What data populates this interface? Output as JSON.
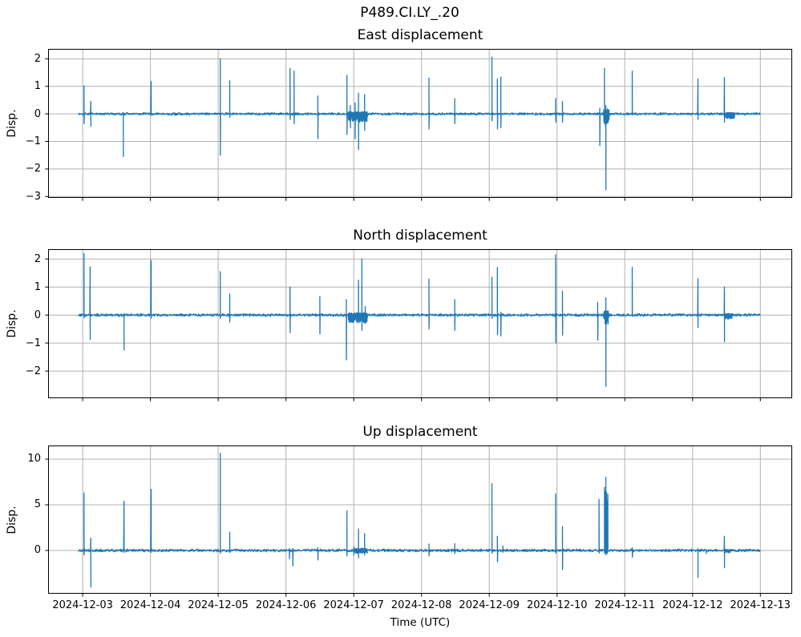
{
  "figure": {
    "suptitle": "P489.CI.LY_.20",
    "line_color": "#1f77b4",
    "grid_color": "#b0b0b0",
    "spine_color": "#000000",
    "background_color": "#ffffff"
  },
  "x_axis": {
    "label": "Time (UTC)",
    "xlim_days": [
      -0.51,
      10.47
    ],
    "tick_days": [
      0,
      1,
      2,
      3,
      4,
      5,
      6,
      7,
      8,
      9,
      10
    ],
    "tick_labels": [
      "2024-12-03",
      "2024-12-04",
      "2024-12-05",
      "2024-12-06",
      "2024-12-07",
      "2024-12-08",
      "2024-12-09",
      "2024-12-10",
      "2024-12-11",
      "2024-12-12",
      "2024-12-13"
    ]
  },
  "chart_data": [
    {
      "type": "line",
      "title": "East displacement",
      "ylabel": "Disp.",
      "ylim": [
        -3.05,
        2.36
      ],
      "yticks": [
        {
          "value": 2,
          "label": "2"
        },
        {
          "value": 1,
          "label": "1"
        },
        {
          "value": 0,
          "label": "0"
        },
        {
          "value": -1,
          "label": "−1"
        },
        {
          "value": -2,
          "label": "−2"
        },
        {
          "value": -3,
          "label": "−3"
        }
      ],
      "grid": true,
      "data_start_day": -0.06,
      "data_end_day": 10.0,
      "baseline": 0,
      "noise_amp": 0.032,
      "spikes_day_up_down": [
        [
          0.02,
          1.02,
          -0.35
        ],
        [
          0.12,
          0.45,
          -0.45
        ],
        [
          0.6,
          0.05,
          -1.55
        ],
        [
          1.01,
          1.18,
          -0.05
        ],
        [
          2.03,
          2.0,
          -1.5
        ],
        [
          2.17,
          1.2,
          -0.12
        ],
        [
          3.06,
          1.65,
          -0.2
        ],
        [
          3.12,
          1.55,
          -0.35
        ],
        [
          3.47,
          0.65,
          -0.9
        ],
        [
          3.9,
          1.4,
          -0.75
        ],
        [
          3.95,
          0.3,
          -0.5
        ],
        [
          4.02,
          0.4,
          -0.9
        ],
        [
          4.07,
          0.75,
          -1.3
        ],
        [
          4.16,
          0.7,
          -0.6
        ],
        [
          5.11,
          1.3,
          -0.55
        ],
        [
          5.49,
          0.55,
          -0.35
        ],
        [
          6.04,
          2.06,
          -0.25
        ],
        [
          6.12,
          1.26,
          -0.55
        ],
        [
          6.17,
          1.34,
          -0.5
        ],
        [
          6.98,
          0.55,
          -0.3
        ],
        [
          7.08,
          0.45,
          -0.3
        ],
        [
          7.63,
          0.2,
          -1.15
        ],
        [
          7.7,
          1.65,
          -0.2
        ],
        [
          7.72,
          0.3,
          -2.75
        ],
        [
          8.11,
          1.55,
          -0.05
        ],
        [
          9.08,
          1.27,
          -0.2
        ],
        [
          9.47,
          1.32,
          -0.3
        ]
      ],
      "blobs_d0_d1_min_max": [
        [
          3.92,
          4.2,
          -0.3,
          0.08
        ],
        [
          7.69,
          7.77,
          -0.45,
          0.2
        ],
        [
          9.48,
          9.62,
          -0.18,
          0.05
        ]
      ]
    },
    {
      "type": "line",
      "title": "North displacement",
      "ylabel": "Disp.",
      "ylim": [
        -2.97,
        2.35
      ],
      "yticks": [
        {
          "value": 2,
          "label": "2"
        },
        {
          "value": 1,
          "label": "1"
        },
        {
          "value": 0,
          "label": "0"
        },
        {
          "value": -1,
          "label": "−1"
        },
        {
          "value": -2,
          "label": "−2"
        }
      ],
      "grid": true,
      "data_start_day": -0.06,
      "data_end_day": 10.0,
      "baseline": 0,
      "noise_amp": 0.035,
      "spikes_day_up_down": [
        [
          0.02,
          2.2,
          -0.1
        ],
        [
          0.11,
          1.72,
          -0.87
        ],
        [
          0.61,
          0.05,
          -1.25
        ],
        [
          1.01,
          1.95,
          -0.1
        ],
        [
          2.03,
          1.55,
          -0.12
        ],
        [
          2.17,
          0.75,
          -0.25
        ],
        [
          3.06,
          1.0,
          -0.63
        ],
        [
          3.5,
          0.66,
          -0.68
        ],
        [
          3.89,
          0.55,
          -1.6
        ],
        [
          4.07,
          1.25,
          -0.2
        ],
        [
          4.12,
          2.0,
          -0.55
        ],
        [
          4.17,
          0.3,
          -0.3
        ],
        [
          5.11,
          1.28,
          -0.5
        ],
        [
          5.49,
          0.55,
          -0.55
        ],
        [
          6.04,
          1.35,
          -0.12
        ],
        [
          6.12,
          1.7,
          -0.7
        ],
        [
          6.17,
          0.1,
          -0.75
        ],
        [
          6.98,
          2.15,
          -1.0
        ],
        [
          7.08,
          0.85,
          -0.72
        ],
        [
          7.6,
          0.45,
          -0.9
        ],
        [
          7.72,
          0.62,
          -2.55
        ],
        [
          8.11,
          1.7,
          -0.05
        ],
        [
          9.08,
          1.3,
          -0.45
        ],
        [
          9.47,
          1.0,
          -0.95
        ]
      ],
      "blobs_d0_d1_min_max": [
        [
          3.92,
          4.2,
          -0.28,
          0.08
        ],
        [
          7.69,
          7.76,
          -0.35,
          0.15
        ],
        [
          9.48,
          9.58,
          -0.15,
          0.05
        ]
      ]
    },
    {
      "type": "line",
      "title": "Up displacement",
      "ylabel": "Disp.",
      "ylim": [
        -4.74,
        11.49
      ],
      "yticks": [
        {
          "value": 10,
          "label": "10"
        },
        {
          "value": 5,
          "label": "5"
        },
        {
          "value": 0,
          "label": "0"
        }
      ],
      "grid": true,
      "data_start_day": -0.06,
      "data_end_day": 10.0,
      "baseline": 0,
      "noise_amp": 0.11,
      "spikes_day_up_down": [
        [
          0.02,
          6.3,
          -0.5
        ],
        [
          0.12,
          1.35,
          -4.0
        ],
        [
          0.61,
          5.4,
          -0.2
        ],
        [
          1.01,
          6.7,
          -0.2
        ],
        [
          2.03,
          10.65,
          -0.3
        ],
        [
          2.17,
          2.0,
          -0.2
        ],
        [
          3.05,
          0.2,
          -0.9
        ],
        [
          3.1,
          0.2,
          -1.7
        ],
        [
          3.47,
          0.3,
          -1.05
        ],
        [
          3.9,
          4.35,
          -0.6
        ],
        [
          4.0,
          0.4,
          -0.5
        ],
        [
          4.07,
          2.35,
          -0.8
        ],
        [
          4.16,
          1.85,
          -0.5
        ],
        [
          5.11,
          0.7,
          -0.6
        ],
        [
          5.49,
          0.75,
          -0.35
        ],
        [
          6.04,
          7.3,
          -0.3
        ],
        [
          6.12,
          1.55,
          -1.25
        ],
        [
          6.2,
          0.5,
          -0.2
        ],
        [
          6.98,
          6.2,
          -0.3
        ],
        [
          7.08,
          2.6,
          -2.1
        ],
        [
          7.62,
          5.6,
          -0.3
        ],
        [
          7.7,
          6.9,
          -0.3
        ],
        [
          7.72,
          8.0,
          -0.5
        ],
        [
          8.11,
          0.3,
          -0.75
        ],
        [
          9.08,
          0.2,
          -2.95
        ],
        [
          9.2,
          0.1,
          -0.35
        ],
        [
          9.47,
          1.55,
          -1.9
        ]
      ],
      "blobs_d0_d1_min_max": [
        [
          4.0,
          4.2,
          -0.3,
          0.25
        ],
        [
          7.7,
          7.75,
          -0.35,
          6.5
        ],
        [
          9.48,
          9.56,
          -0.25,
          0.1
        ]
      ]
    }
  ]
}
